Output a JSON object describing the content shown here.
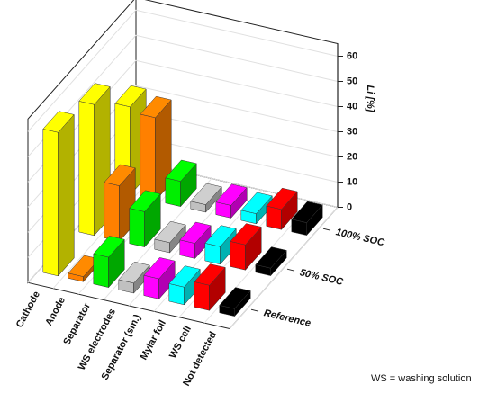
{
  "chart_data": {
    "type": "bar3d",
    "categories": [
      "Cathode",
      "Anode",
      "Separator",
      "WS electrodes",
      "Separator (sm.)",
      "Mylar foil",
      "WS cell",
      "Not detected"
    ],
    "colors": [
      "#ffff00",
      "#ff8000",
      "#00ee00",
      "#c0c0c0",
      "#ff00ff",
      "#00ffff",
      "#ff0000",
      "#000000"
    ],
    "series": [
      {
        "name": "Reference",
        "values": [
          57,
          2,
          12,
          4,
          8,
          7,
          10,
          3
        ]
      },
      {
        "name": "50% SOC",
        "values": [
          52,
          22,
          14,
          4,
          6,
          7,
          10,
          3
        ]
      },
      {
        "name": "100% SOC",
        "values": [
          35,
          33,
          10,
          3,
          5,
          4,
          8,
          5
        ]
      }
    ],
    "ylabel": "Li [%]",
    "ylim": [
      0,
      65
    ],
    "yticks": [
      0,
      10,
      20,
      30,
      40,
      50,
      60
    ],
    "grid": true,
    "note": "WS = washing solution"
  }
}
